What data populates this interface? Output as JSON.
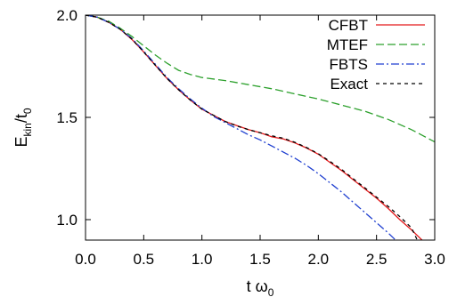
{
  "chart_data": {
    "type": "line",
    "title": "",
    "xlabel": {
      "main": "t ω",
      "sub": "0"
    },
    "ylabel": {
      "main": "E",
      "sub": "kin",
      "rest": "/t",
      "sub2": "0"
    },
    "xlim": [
      0.0,
      3.0
    ],
    "ylim": [
      0.9,
      2.0
    ],
    "xticks": [
      0.0,
      0.5,
      1.0,
      1.5,
      2.0,
      2.5,
      3.0
    ],
    "xtick_labels": [
      "0.0",
      "0.5",
      "1.0",
      "1.5",
      "2.0",
      "2.5",
      "3.0"
    ],
    "yticks": [
      1.0,
      1.5,
      2.0
    ],
    "ytick_labels": [
      "1.0",
      "1.5",
      "2.0"
    ],
    "grid": false,
    "legend_position": "top-right",
    "series": [
      {
        "name": "CFBT",
        "color": "#e41a1c",
        "dash": "solid",
        "x": [
          0.0,
          0.1,
          0.2,
          0.3,
          0.4,
          0.5,
          0.6,
          0.7,
          0.8,
          0.9,
          1.0,
          1.1,
          1.2,
          1.3,
          1.4,
          1.5,
          1.6,
          1.7,
          1.8,
          1.9,
          2.0,
          2.1,
          2.2,
          2.3,
          2.4,
          2.5,
          2.6,
          2.7,
          2.8,
          2.9
        ],
        "y": [
          2.0,
          1.99,
          1.965,
          1.93,
          1.88,
          1.82,
          1.755,
          1.69,
          1.635,
          1.585,
          1.54,
          1.51,
          1.48,
          1.46,
          1.44,
          1.425,
          1.405,
          1.395,
          1.375,
          1.35,
          1.32,
          1.28,
          1.24,
          1.195,
          1.15,
          1.105,
          1.055,
          1.0,
          0.95,
          0.895
        ]
      },
      {
        "name": "MTEF",
        "color": "#2ca02c",
        "dash": "long-dash",
        "x": [
          0.0,
          0.1,
          0.2,
          0.3,
          0.4,
          0.5,
          0.6,
          0.7,
          0.8,
          0.9,
          1.0,
          1.2,
          1.4,
          1.6,
          1.8,
          2.0,
          2.2,
          2.4,
          2.6,
          2.8,
          3.0
        ],
        "y": [
          2.0,
          1.99,
          1.97,
          1.935,
          1.895,
          1.85,
          1.805,
          1.765,
          1.73,
          1.71,
          1.695,
          1.68,
          1.66,
          1.64,
          1.615,
          1.59,
          1.56,
          1.53,
          1.49,
          1.44,
          1.38
        ]
      },
      {
        "name": "FBTS",
        "color": "#1f3fd0",
        "dash": "dash-dot",
        "x": [
          0.0,
          0.1,
          0.2,
          0.3,
          0.4,
          0.5,
          0.6,
          0.7,
          0.8,
          0.9,
          1.0,
          1.1,
          1.2,
          1.3,
          1.4,
          1.5,
          1.6,
          1.7,
          1.8,
          1.9,
          2.0,
          2.1,
          2.2,
          2.3,
          2.4,
          2.5,
          2.6,
          2.7
        ],
        "y": [
          2.0,
          1.99,
          1.965,
          1.93,
          1.885,
          1.825,
          1.76,
          1.695,
          1.64,
          1.59,
          1.545,
          1.505,
          1.475,
          1.445,
          1.415,
          1.39,
          1.36,
          1.33,
          1.3,
          1.265,
          1.225,
          1.18,
          1.135,
          1.085,
          1.035,
          0.985,
          0.935,
          0.88
        ]
      },
      {
        "name": "Exact",
        "color": "#000000",
        "dash": "short-dash",
        "x": [
          0.0,
          0.1,
          0.2,
          0.3,
          0.4,
          0.5,
          0.6,
          0.7,
          0.8,
          0.9,
          1.0,
          1.1,
          1.2,
          1.3,
          1.4,
          1.5,
          1.6,
          1.7,
          1.8,
          1.9,
          2.0,
          2.1,
          2.2,
          2.3,
          2.4,
          2.5,
          2.6,
          2.7,
          2.8,
          2.85
        ],
        "y": [
          2.0,
          1.99,
          1.965,
          1.93,
          1.882,
          1.82,
          1.755,
          1.69,
          1.635,
          1.585,
          1.54,
          1.51,
          1.48,
          1.458,
          1.44,
          1.425,
          1.41,
          1.398,
          1.378,
          1.352,
          1.322,
          1.285,
          1.245,
          1.2,
          1.155,
          1.11,
          1.065,
          1.015,
          0.96,
          0.9
        ]
      }
    ]
  }
}
